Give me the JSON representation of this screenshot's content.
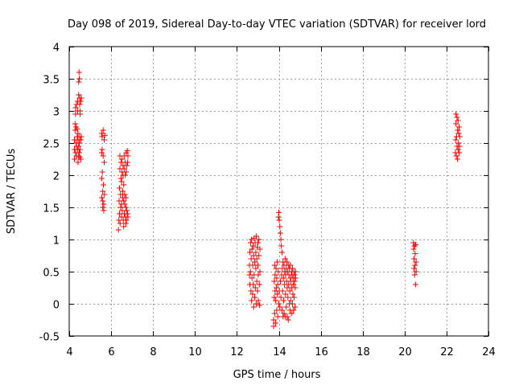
{
  "chart_data": {
    "type": "scatter",
    "title": "Day 098 of 2019, Sidereal Day-to-day VTEC variation (SDTVAR) for receiver lord",
    "xlabel": "GPS time / hours",
    "ylabel": "SDTVAR / TECUs",
    "xlim": [
      4,
      24
    ],
    "ylim": [
      -0.5,
      4
    ],
    "grid": true,
    "marker": "+",
    "color": "#ff0000",
    "xticks": [
      4,
      6,
      8,
      10,
      12,
      14,
      16,
      18,
      20,
      22,
      24
    ],
    "xtick_labels": [
      "4",
      "6",
      "8",
      "10",
      "12",
      "14",
      "16",
      "18",
      "20",
      "22",
      "24"
    ],
    "yticks": [
      -0.5,
      0,
      0.5,
      1,
      1.5,
      2,
      2.5,
      3,
      3.5,
      4
    ],
    "ytick_labels": [
      "-0.5",
      "0",
      "0.5",
      "1",
      "1.5",
      "2",
      "2.5",
      "3",
      "3.5",
      "4"
    ],
    "series": [
      {
        "name": "SDTVAR",
        "points": [
          [
            4.25,
            2.25
          ],
          [
            4.25,
            2.4
          ],
          [
            4.25,
            2.55
          ],
          [
            4.28,
            2.7
          ],
          [
            4.28,
            2.8
          ],
          [
            4.3,
            2.95
          ],
          [
            4.3,
            3.05
          ],
          [
            4.3,
            2.35
          ],
          [
            4.33,
            2.5
          ],
          [
            4.33,
            2.75
          ],
          [
            4.35,
            3.1
          ],
          [
            4.35,
            2.3
          ],
          [
            4.35,
            2.45
          ],
          [
            4.38,
            2.6
          ],
          [
            4.38,
            2.72
          ],
          [
            4.4,
            3.15
          ],
          [
            4.4,
            3.0
          ],
          [
            4.4,
            2.4
          ],
          [
            4.42,
            2.2
          ],
          [
            4.42,
            2.55
          ],
          [
            4.42,
            2.65
          ],
          [
            4.45,
            3.25
          ],
          [
            4.45,
            3.45
          ],
          [
            4.45,
            2.3
          ],
          [
            4.45,
            2.45
          ],
          [
            4.47,
            3.6
          ],
          [
            4.48,
            3.5
          ],
          [
            4.48,
            2.35
          ],
          [
            4.48,
            2.5
          ],
          [
            4.5,
            3.2
          ],
          [
            4.5,
            3.1
          ],
          [
            4.5,
            2.6
          ],
          [
            4.5,
            2.28
          ],
          [
            4.52,
            3.0
          ],
          [
            4.52,
            2.95
          ],
          [
            4.52,
            2.4
          ],
          [
            4.55,
            3.15
          ],
          [
            4.55,
            2.55
          ],
          [
            4.55,
            2.25
          ],
          [
            4.58,
            3.2
          ],
          [
            4.58,
            2.6
          ],
          [
            5.55,
            2.65
          ],
          [
            5.55,
            2.35
          ],
          [
            5.55,
            1.95
          ],
          [
            5.55,
            1.65
          ],
          [
            5.57,
            2.6
          ],
          [
            5.57,
            2.4
          ],
          [
            5.58,
            2.05
          ],
          [
            5.6,
            1.6
          ],
          [
            5.6,
            1.75
          ],
          [
            5.6,
            1.5
          ],
          [
            5.62,
            2.7
          ],
          [
            5.62,
            2.3
          ],
          [
            5.63,
            1.85
          ],
          [
            5.65,
            1.45
          ],
          [
            5.65,
            1.55
          ],
          [
            5.67,
            2.55
          ],
          [
            5.67,
            2.2
          ],
          [
            5.68,
            1.7
          ],
          [
            5.7,
            2.62
          ],
          [
            6.35,
            1.15
          ],
          [
            6.37,
            1.3
          ],
          [
            6.38,
            1.6
          ],
          [
            6.4,
            1.4
          ],
          [
            6.4,
            1.8
          ],
          [
            6.42,
            2.3
          ],
          [
            6.42,
            2.1
          ],
          [
            6.43,
            1.25
          ],
          [
            6.45,
            1.5
          ],
          [
            6.45,
            1.7
          ],
          [
            6.47,
            1.95
          ],
          [
            6.47,
            2.2
          ],
          [
            6.5,
            1.35
          ],
          [
            6.5,
            1.55
          ],
          [
            6.5,
            1.9
          ],
          [
            6.52,
            2.05
          ],
          [
            6.52,
            2.25
          ],
          [
            6.53,
            1.45
          ],
          [
            6.55,
            1.65
          ],
          [
            6.55,
            1.75
          ],
          [
            6.57,
            2.0
          ],
          [
            6.57,
            2.15
          ],
          [
            6.58,
            1.3
          ],
          [
            6.6,
            1.2
          ],
          [
            6.6,
            1.6
          ],
          [
            6.6,
            1.85
          ],
          [
            6.62,
            2.1
          ],
          [
            6.62,
            2.3
          ],
          [
            6.63,
            1.4
          ],
          [
            6.65,
            1.55
          ],
          [
            6.65,
            1.7
          ],
          [
            6.67,
            2.0
          ],
          [
            6.67,
            2.2
          ],
          [
            6.68,
            1.35
          ],
          [
            6.7,
            1.25
          ],
          [
            6.7,
            1.5
          ],
          [
            6.7,
            1.65
          ],
          [
            6.72,
            2.35
          ],
          [
            6.72,
            2.05
          ],
          [
            6.73,
            1.3
          ],
          [
            6.75,
            2.15
          ],
          [
            6.75,
            1.45
          ],
          [
            6.77,
            2.38
          ],
          [
            6.78,
            2.2
          ],
          [
            6.78,
            1.4
          ],
          [
            6.8,
            2.3
          ],
          [
            6.8,
            1.35
          ],
          [
            12.6,
            0.45
          ],
          [
            12.6,
            0.6
          ],
          [
            12.62,
            0.8
          ],
          [
            12.62,
            0.3
          ],
          [
            12.65,
            0.95
          ],
          [
            12.65,
            0.5
          ],
          [
            12.67,
            0.2
          ],
          [
            12.68,
            0.7
          ],
          [
            12.7,
            1.0
          ],
          [
            12.7,
            0.05
          ],
          [
            12.72,
            0.4
          ],
          [
            12.72,
            0.85
          ],
          [
            12.75,
            0.6
          ],
          [
            12.75,
            0.15
          ],
          [
            12.77,
            0.9
          ],
          [
            12.78,
            0.3
          ],
          [
            12.8,
            -0.05
          ],
          [
            12.8,
            0.75
          ],
          [
            12.82,
            1.02
          ],
          [
            12.82,
            0.45
          ],
          [
            12.85,
            0.1
          ],
          [
            12.85,
            0.65
          ],
          [
            12.87,
            0.95
          ],
          [
            12.88,
            0.25
          ],
          [
            12.9,
            0.55
          ],
          [
            12.9,
            0.8
          ],
          [
            12.92,
            0.0
          ],
          [
            12.92,
            1.05
          ],
          [
            12.95,
            0.35
          ],
          [
            12.95,
            0.7
          ],
          [
            12.97,
            0.88
          ],
          [
            12.98,
            0.2
          ],
          [
            13.0,
            0.6
          ],
          [
            13.0,
            0.95
          ],
          [
            13.02,
            0.05
          ],
          [
            13.02,
            0.45
          ],
          [
            13.05,
            0.75
          ],
          [
            13.05,
            1.0
          ],
          [
            13.07,
            0.3
          ],
          [
            13.08,
            -0.02
          ],
          [
            13.1,
            0.5
          ],
          [
            13.1,
            0.85
          ],
          [
            13.75,
            -0.35
          ],
          [
            13.75,
            -0.25
          ],
          [
            13.78,
            0.1
          ],
          [
            13.78,
            0.35
          ],
          [
            13.8,
            0.6
          ],
          [
            13.8,
            -0.15
          ],
          [
            13.82,
            0.2
          ],
          [
            13.82,
            0.45
          ],
          [
            13.85,
            -0.3
          ],
          [
            13.85,
            0.05
          ],
          [
            13.87,
            0.55
          ],
          [
            13.88,
            0.25
          ],
          [
            13.9,
            -0.1
          ],
          [
            13.9,
            0.4
          ],
          [
            13.92,
            0.65
          ],
          [
            13.93,
            0.15
          ],
          [
            13.95,
            -0.2
          ],
          [
            13.95,
            0.3
          ],
          [
            13.97,
            0.5
          ],
          [
            13.98,
            1.35
          ],
          [
            14.0,
            1.42
          ],
          [
            14.0,
            0.0
          ],
          [
            14.02,
            1.3
          ],
          [
            14.02,
            0.2
          ],
          [
            14.05,
            1.2
          ],
          [
            14.05,
            -0.05
          ],
          [
            14.07,
            1.1
          ],
          [
            14.08,
            0.35
          ],
          [
            14.1,
            1.0
          ],
          [
            14.1,
            0.1
          ],
          [
            14.12,
            0.9
          ],
          [
            14.13,
            0.45
          ],
          [
            14.15,
            0.8
          ],
          [
            14.15,
            -0.1
          ],
          [
            14.17,
            0.55
          ],
          [
            14.18,
            0.2
          ],
          [
            14.2,
            0.65
          ],
          [
            14.2,
            -0.2
          ],
          [
            14.22,
            0.4
          ],
          [
            14.23,
            0.05
          ],
          [
            14.25,
            0.6
          ],
          [
            14.25,
            -0.15
          ],
          [
            14.27,
            0.3
          ],
          [
            14.28,
            0.5
          ],
          [
            14.3,
            0.7
          ],
          [
            14.3,
            -0.2
          ],
          [
            14.32,
            0.15
          ],
          [
            14.33,
            0.45
          ],
          [
            14.35,
            0.55
          ],
          [
            14.35,
            -0.05
          ],
          [
            14.37,
            0.35
          ],
          [
            14.38,
            0.65
          ],
          [
            14.4,
            0.25
          ],
          [
            14.4,
            -0.2
          ],
          [
            14.42,
            0.5
          ],
          [
            14.43,
            0.1
          ],
          [
            14.45,
            0.6
          ],
          [
            14.45,
            -0.25
          ],
          [
            14.47,
            0.3
          ],
          [
            14.48,
            0.45
          ],
          [
            14.5,
            0.0
          ],
          [
            14.5,
            0.55
          ],
          [
            14.52,
            0.2
          ],
          [
            14.53,
            -0.1
          ],
          [
            14.55,
            0.4
          ],
          [
            14.55,
            0.6
          ],
          [
            14.57,
            0.05
          ],
          [
            14.58,
            0.35
          ],
          [
            14.6,
            -0.15
          ],
          [
            14.6,
            0.5
          ],
          [
            14.62,
            0.25
          ],
          [
            14.63,
            0.45
          ],
          [
            14.65,
            0.0
          ],
          [
            14.65,
            0.55
          ],
          [
            14.67,
            0.15
          ],
          [
            14.68,
            0.4
          ],
          [
            14.7,
            -0.1
          ],
          [
            14.7,
            0.3
          ],
          [
            14.72,
            0.5
          ],
          [
            14.73,
            0.1
          ],
          [
            14.75,
            0.35
          ],
          [
            14.75,
            0.45
          ],
          [
            14.77,
            -0.05
          ],
          [
            14.78,
            0.25
          ],
          [
            14.8,
            0.5
          ],
          [
            14.8,
            0.4
          ],
          [
            20.42,
            0.95
          ],
          [
            20.43,
            0.85
          ],
          [
            20.45,
            0.7
          ],
          [
            20.45,
            0.55
          ],
          [
            20.47,
            0.9
          ],
          [
            20.48,
            0.45
          ],
          [
            20.5,
            0.6
          ],
          [
            20.5,
            0.78
          ],
          [
            20.52,
            0.3
          ],
          [
            20.53,
            0.92
          ],
          [
            20.55,
            0.65
          ],
          [
            20.55,
            0.5
          ],
          [
            22.42,
            2.35
          ],
          [
            22.43,
            2.55
          ],
          [
            22.45,
            2.8
          ],
          [
            22.45,
            2.95
          ],
          [
            22.47,
            2.3
          ],
          [
            22.48,
            2.6
          ],
          [
            22.5,
            2.45
          ],
          [
            22.5,
            2.9
          ],
          [
            22.52,
            2.25
          ],
          [
            22.53,
            2.7
          ],
          [
            22.55,
            2.4
          ],
          [
            22.55,
            2.85
          ],
          [
            22.57,
            2.5
          ],
          [
            22.58,
            2.65
          ],
          [
            22.6,
            2.35
          ],
          [
            22.6,
            2.75
          ],
          [
            22.62,
            2.45
          ],
          [
            22.63,
            2.6
          ]
        ]
      }
    ]
  }
}
